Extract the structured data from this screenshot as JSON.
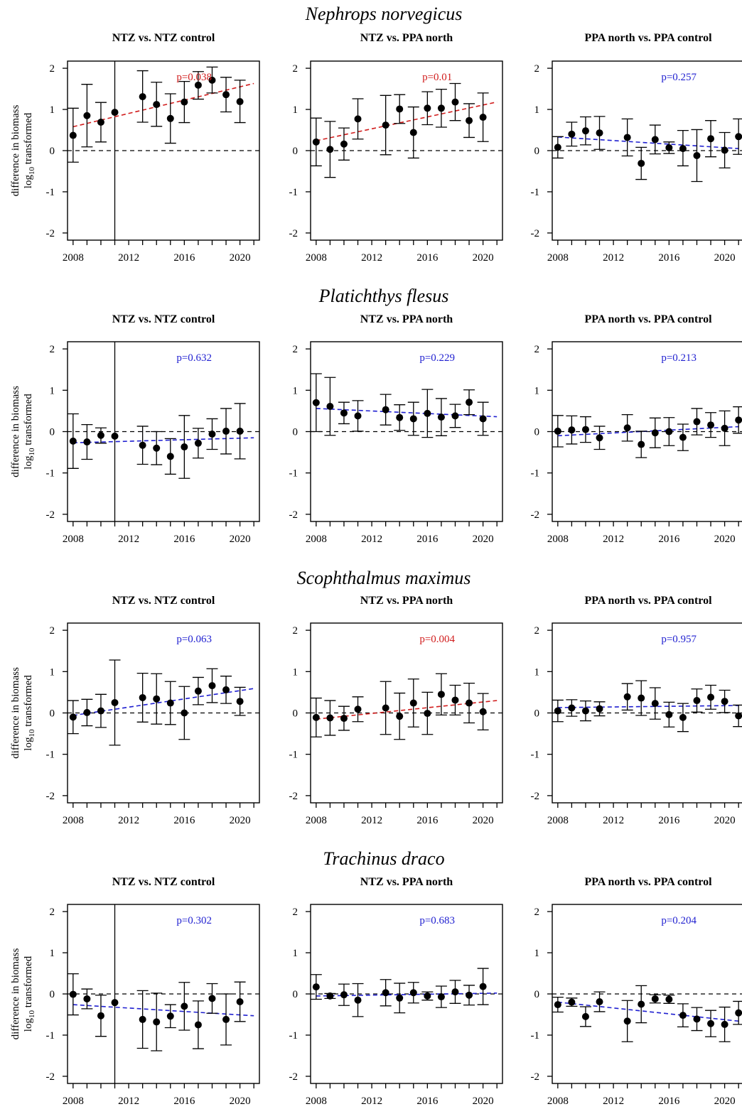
{
  "figure": {
    "ylabel_line1": "difference in biomass",
    "ylabel_line2_main": "log",
    "ylabel_line2_sub": "10",
    "ylabel_line2_rest": " transformed"
  },
  "colors": {
    "significant": "#d11d1d",
    "nonsignificant": "#1f1fd0",
    "points": "#000000"
  },
  "chart_data": [
    {
      "type": "scatter",
      "species": "Nephrops norvegicus",
      "title": "NTZ vs. NTZ control",
      "pvalue": "p=0.038",
      "significant": true,
      "vline_year": 2011,
      "x": [
        2008,
        2009,
        2010,
        2011,
        2013,
        2014,
        2015,
        2016,
        2017,
        2018,
        2019,
        2020
      ],
      "y": [
        0.37,
        0.85,
        0.69,
        0.93,
        1.31,
        1.12,
        0.78,
        1.18,
        1.59,
        1.71,
        1.36,
        1.19
      ],
      "err_lo": [
        -0.28,
        0.09,
        0.21,
        0.93,
        0.69,
        0.59,
        0.18,
        0.68,
        1.25,
        1.4,
        0.94,
        0.68
      ],
      "err_hi": [
        1.03,
        1.61,
        1.17,
        0.93,
        1.94,
        1.66,
        1.38,
        1.68,
        1.92,
        2.03,
        1.78,
        1.71
      ],
      "trend": [
        [
          2008,
          0.58
        ],
        [
          2021,
          1.63
        ]
      ],
      "ylim": [
        -2,
        2
      ],
      "xticks": [
        2008,
        2012,
        2016,
        2020
      ],
      "yticks": [
        -2,
        -1,
        0,
        1,
        2
      ]
    },
    {
      "type": "scatter",
      "species": "",
      "title": "NTZ vs. PPA north",
      "pvalue": "p=0.01",
      "significant": true,
      "vline_year": null,
      "x": [
        2008,
        2009,
        2010,
        2011,
        2013,
        2014,
        2015,
        2016,
        2017,
        2018,
        2019,
        2020
      ],
      "y": [
        0.21,
        0.03,
        0.16,
        0.77,
        0.62,
        1.01,
        0.44,
        1.03,
        1.03,
        1.18,
        0.73,
        0.81
      ],
      "err_lo": [
        -0.37,
        -0.65,
        -0.23,
        0.28,
        -0.1,
        0.66,
        -0.18,
        0.63,
        0.57,
        0.73,
        0.32,
        0.22
      ],
      "err_hi": [
        0.79,
        0.71,
        0.55,
        1.26,
        1.34,
        1.36,
        1.06,
        1.43,
        1.49,
        1.63,
        1.14,
        1.4
      ],
      "trend": [
        [
          2008,
          0.24
        ],
        [
          2021,
          1.18
        ]
      ],
      "ylim": [
        -2,
        2
      ],
      "xticks": [
        2008,
        2012,
        2016,
        2020
      ],
      "yticks": [
        -2,
        -1,
        0,
        1,
        2
      ]
    },
    {
      "type": "scatter",
      "species": "",
      "title": "PPA north vs. PPA control",
      "pvalue": "p=0.257",
      "significant": false,
      "vline_year": null,
      "x": [
        2008,
        2009,
        2010,
        2011,
        2013,
        2014,
        2015,
        2016,
        2017,
        2018,
        2019,
        2020,
        2021
      ],
      "y": [
        0.08,
        0.4,
        0.48,
        0.43,
        0.32,
        -0.31,
        0.27,
        0.07,
        0.05,
        -0.12,
        0.29,
        0.01,
        0.34
      ],
      "err_lo": [
        -0.18,
        0.11,
        0.14,
        0.03,
        -0.13,
        -0.7,
        -0.08,
        -0.07,
        -0.37,
        -0.75,
        -0.15,
        -0.42,
        -0.09
      ],
      "err_hi": [
        0.34,
        0.69,
        0.82,
        0.83,
        0.77,
        0.08,
        0.62,
        0.21,
        0.49,
        0.51,
        0.73,
        0.44,
        0.77
      ],
      "trend": [
        [
          2008,
          0.33
        ],
        [
          2021,
          0.05
        ]
      ],
      "ylim": [
        -2,
        2
      ],
      "xticks": [
        2008,
        2012,
        2016,
        2020
      ],
      "yticks": [
        -2,
        -1,
        0,
        1,
        2
      ]
    },
    {
      "type": "scatter",
      "species": "Platichthys flesus",
      "title": "NTZ vs. NTZ control",
      "pvalue": "p=0.632",
      "significant": false,
      "vline_year": 2011,
      "x": [
        2008,
        2009,
        2010,
        2011,
        2013,
        2014,
        2015,
        2016,
        2017,
        2018,
        2019,
        2020
      ],
      "y": [
        -0.23,
        -0.25,
        -0.09,
        -0.11,
        -0.33,
        -0.4,
        -0.6,
        -0.37,
        -0.28,
        -0.06,
        0.01,
        0.01
      ],
      "err_lo": [
        -0.89,
        -0.67,
        -0.28,
        -0.11,
        -0.79,
        -0.8,
        -1.03,
        -1.13,
        -0.64,
        -0.43,
        -0.54,
        -0.66
      ],
      "err_hi": [
        0.43,
        0.17,
        0.09,
        -0.11,
        0.13,
        0.0,
        -0.17,
        0.39,
        0.08,
        0.31,
        0.56,
        0.68
      ],
      "trend": [
        [
          2008,
          -0.27
        ],
        [
          2021,
          -0.15
        ]
      ],
      "ylim": [
        -2,
        2
      ],
      "xticks": [
        2008,
        2012,
        2016,
        2020
      ],
      "yticks": [
        -2,
        -1,
        0,
        1,
        2
      ]
    },
    {
      "type": "scatter",
      "species": "",
      "title": "NTZ vs. PPA north",
      "pvalue": "p=0.229",
      "significant": false,
      "vline_year": null,
      "x": [
        2008,
        2009,
        2010,
        2011,
        2013,
        2014,
        2015,
        2016,
        2017,
        2018,
        2019,
        2020
      ],
      "y": [
        0.7,
        0.61,
        0.45,
        0.38,
        0.53,
        0.34,
        0.31,
        0.44,
        0.35,
        0.38,
        0.71,
        0.31
      ],
      "err_lo": [
        0.0,
        -0.09,
        0.19,
        0.01,
        0.16,
        0.03,
        -0.09,
        -0.14,
        -0.1,
        0.1,
        0.41,
        -0.09
      ],
      "err_hi": [
        1.4,
        1.31,
        0.71,
        0.75,
        0.9,
        0.65,
        0.71,
        1.02,
        0.8,
        0.66,
        1.01,
        0.71
      ],
      "trend": [
        [
          2008,
          0.56
        ],
        [
          2021,
          0.36
        ]
      ],
      "ylim": [
        -2,
        2
      ],
      "xticks": [
        2008,
        2012,
        2016,
        2020
      ],
      "yticks": [
        -2,
        -1,
        0,
        1,
        2
      ]
    },
    {
      "type": "scatter",
      "species": "",
      "title": "PPA north vs. PPA control",
      "pvalue": "p=0.213",
      "significant": false,
      "vline_year": null,
      "x": [
        2008,
        2009,
        2010,
        2011,
        2013,
        2014,
        2015,
        2016,
        2017,
        2018,
        2019,
        2020,
        2021
      ],
      "y": [
        0.01,
        0.04,
        0.05,
        -0.15,
        0.09,
        -0.31,
        -0.03,
        0.0,
        -0.14,
        0.24,
        0.16,
        0.08,
        0.28
      ],
      "err_lo": [
        -0.37,
        -0.3,
        -0.26,
        -0.43,
        -0.23,
        -0.63,
        -0.39,
        -0.34,
        -0.46,
        -0.08,
        -0.14,
        -0.34,
        -0.04
      ],
      "err_hi": [
        0.39,
        0.38,
        0.36,
        0.13,
        0.41,
        0.01,
        0.33,
        0.34,
        0.18,
        0.56,
        0.46,
        0.5,
        0.6
      ],
      "trend": [
        [
          2008,
          -0.1
        ],
        [
          2021,
          0.12
        ]
      ],
      "ylim": [
        -2,
        2
      ],
      "xticks": [
        2008,
        2012,
        2016,
        2020
      ],
      "yticks": [
        -2,
        -1,
        0,
        1,
        2
      ]
    },
    {
      "type": "scatter",
      "species": "Scophthalmus maximus",
      "title": "NTZ vs. NTZ control",
      "pvalue": "p=0.063",
      "significant": false,
      "vline_year": null,
      "x": [
        2008,
        2009,
        2010,
        2011,
        2013,
        2014,
        2015,
        2016,
        2017,
        2018,
        2019,
        2020
      ],
      "y": [
        -0.1,
        0.01,
        0.05,
        0.25,
        0.37,
        0.34,
        0.24,
        0.0,
        0.53,
        0.66,
        0.56,
        0.28
      ],
      "err_lo": [
        -0.5,
        -0.31,
        -0.35,
        -0.78,
        -0.22,
        -0.27,
        -0.28,
        -0.64,
        0.2,
        0.25,
        0.23,
        -0.06
      ],
      "err_hi": [
        0.3,
        0.33,
        0.45,
        1.28,
        0.96,
        0.95,
        0.76,
        0.64,
        0.86,
        1.07,
        0.89,
        0.62
      ],
      "trend": [
        [
          2008,
          -0.06
        ],
        [
          2021,
          0.59
        ]
      ],
      "ylim": [
        -2,
        2
      ],
      "xticks": [
        2008,
        2012,
        2016,
        2020
      ],
      "yticks": [
        -2,
        -1,
        0,
        1,
        2
      ]
    },
    {
      "type": "scatter",
      "species": "",
      "title": "NTZ vs. PPA north",
      "pvalue": "p=0.004",
      "significant": true,
      "vline_year": null,
      "x": [
        2008,
        2009,
        2010,
        2011,
        2013,
        2014,
        2015,
        2016,
        2017,
        2018,
        2019,
        2020
      ],
      "y": [
        -0.11,
        -0.12,
        -0.13,
        0.09,
        0.12,
        -0.08,
        0.24,
        -0.01,
        0.45,
        0.31,
        0.24,
        0.03
      ],
      "err_lo": [
        -0.58,
        -0.54,
        -0.42,
        -0.21,
        -0.52,
        -0.64,
        -0.34,
        -0.52,
        -0.05,
        -0.05,
        -0.24,
        -0.41
      ],
      "err_hi": [
        0.36,
        0.3,
        0.16,
        0.39,
        0.76,
        0.48,
        0.82,
        0.5,
        0.95,
        0.67,
        0.72,
        0.47
      ],
      "trend": [
        [
          2008,
          -0.15
        ],
        [
          2021,
          0.3
        ]
      ],
      "ylim": [
        -2,
        2
      ],
      "xticks": [
        2008,
        2012,
        2016,
        2020
      ],
      "yticks": [
        -2,
        -1,
        0,
        1,
        2
      ]
    },
    {
      "type": "scatter",
      "species": "",
      "title": "PPA north vs. PPA control",
      "pvalue": "p=0.957",
      "significant": false,
      "vline_year": null,
      "x": [
        2008,
        2009,
        2010,
        2011,
        2013,
        2014,
        2015,
        2016,
        2017,
        2018,
        2019,
        2020,
        2021
      ],
      "y": [
        0.05,
        0.12,
        0.05,
        0.1,
        0.39,
        0.36,
        0.23,
        -0.04,
        -0.11,
        0.3,
        0.38,
        0.28,
        -0.07
      ],
      "err_lo": [
        -0.21,
        -0.08,
        -0.19,
        -0.07,
        0.07,
        -0.06,
        -0.15,
        -0.34,
        -0.45,
        0.02,
        0.09,
        0.01,
        -0.33
      ],
      "err_hi": [
        0.31,
        0.32,
        0.29,
        0.27,
        0.71,
        0.78,
        0.61,
        0.26,
        0.23,
        0.58,
        0.67,
        0.55,
        0.19
      ],
      "trend": [
        [
          2008,
          0.13
        ],
        [
          2021,
          0.18
        ]
      ],
      "ylim": [
        -2,
        2
      ],
      "xticks": [
        2008,
        2012,
        2016,
        2020
      ],
      "yticks": [
        -2,
        -1,
        0,
        1,
        2
      ]
    },
    {
      "type": "scatter",
      "species": "Trachinus draco",
      "title": "NTZ vs. NTZ control",
      "pvalue": "p=0.302",
      "significant": false,
      "vline_year": 2011,
      "x": [
        2008,
        2009,
        2010,
        2011,
        2013,
        2014,
        2015,
        2016,
        2017,
        2018,
        2019,
        2020
      ],
      "y": [
        -0.01,
        -0.12,
        -0.53,
        -0.21,
        -0.62,
        -0.68,
        -0.54,
        -0.3,
        -0.75,
        -0.11,
        -0.62,
        -0.19
      ],
      "err_lo": [
        -0.51,
        -0.36,
        -1.03,
        -0.21,
        -1.32,
        -1.38,
        -0.82,
        -0.88,
        -1.33,
        -0.47,
        -1.24,
        -0.67
      ],
      "err_hi": [
        0.49,
        0.12,
        -0.03,
        -0.21,
        0.08,
        0.02,
        -0.26,
        0.28,
        -0.17,
        0.25,
        0.0,
        0.29
      ],
      "trend": [
        [
          2008,
          -0.26
        ],
        [
          2021,
          -0.53
        ]
      ],
      "ylim": [
        -2,
        2
      ],
      "xticks": [
        2008,
        2012,
        2016,
        2020
      ],
      "yticks": [
        -2,
        -1,
        0,
        1,
        2
      ]
    },
    {
      "type": "scatter",
      "species": "",
      "title": "NTZ vs. PPA north",
      "pvalue": "p=0.683",
      "significant": false,
      "vline_year": null,
      "x": [
        2008,
        2009,
        2010,
        2011,
        2013,
        2014,
        2015,
        2016,
        2017,
        2018,
        2019,
        2020
      ],
      "y": [
        0.17,
        -0.05,
        -0.02,
        -0.15,
        0.03,
        -0.1,
        0.03,
        -0.05,
        -0.07,
        0.05,
        -0.03,
        0.18
      ],
      "err_lo": [
        -0.13,
        -0.11,
        -0.28,
        -0.55,
        -0.29,
        -0.46,
        -0.22,
        -0.15,
        -0.33,
        -0.23,
        -0.27,
        -0.26
      ],
      "err_hi": [
        0.47,
        0.01,
        0.24,
        0.25,
        0.35,
        0.26,
        0.28,
        0.05,
        0.19,
        0.33,
        0.21,
        0.62
      ],
      "trend": [
        [
          2008,
          -0.05
        ],
        [
          2021,
          0.02
        ]
      ],
      "ylim": [
        -2,
        2
      ],
      "xticks": [
        2008,
        2012,
        2016,
        2020
      ],
      "yticks": [
        -2,
        -1,
        0,
        1,
        2
      ]
    },
    {
      "type": "scatter",
      "species": "",
      "title": "PPA north vs. PPA control",
      "pvalue": "p=0.204",
      "significant": false,
      "vline_year": null,
      "x": [
        2008,
        2009,
        2010,
        2011,
        2013,
        2014,
        2015,
        2016,
        2017,
        2018,
        2019,
        2020,
        2021
      ],
      "y": [
        -0.26,
        -0.2,
        -0.55,
        -0.19,
        -0.66,
        -0.25,
        -0.12,
        -0.13,
        -0.52,
        -0.61,
        -0.72,
        -0.74,
        -0.46
      ],
      "err_lo": [
        -0.44,
        -0.3,
        -0.79,
        -0.43,
        -1.16,
        -0.7,
        -0.22,
        -0.23,
        -0.8,
        -0.89,
        -1.04,
        -1.16,
        -0.74
      ],
      "err_hi": [
        -0.08,
        -0.1,
        -0.31,
        0.05,
        -0.16,
        0.2,
        -0.02,
        -0.03,
        -0.24,
        -0.33,
        -0.4,
        -0.32,
        -0.18
      ],
      "trend": [
        [
          2008,
          -0.2
        ],
        [
          2021,
          -0.66
        ]
      ],
      "ylim": [
        -2,
        2
      ],
      "xticks": [
        2008,
        2012,
        2016,
        2020
      ],
      "yticks": [
        -2,
        -1,
        0,
        1,
        2
      ]
    }
  ]
}
